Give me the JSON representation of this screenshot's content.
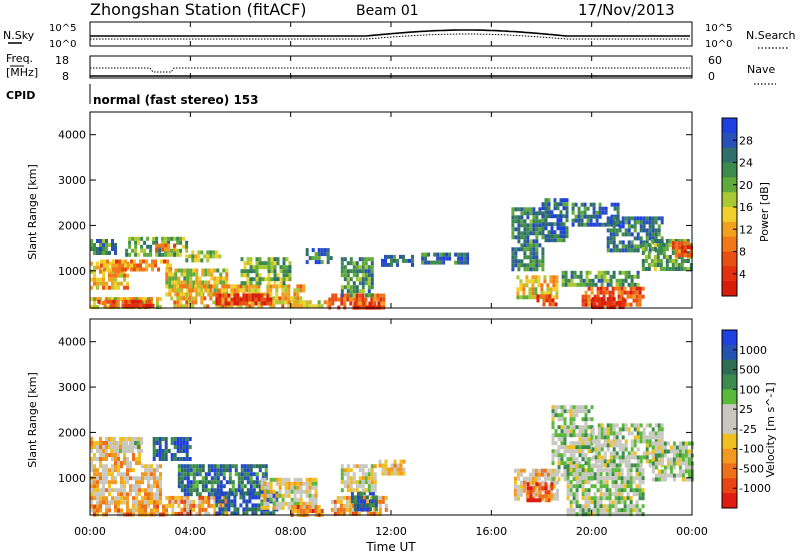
{
  "header": {
    "title": "Zhongshan Station (fitACF)",
    "beam": "Beam 01",
    "date": "17/Nov/2013"
  },
  "top_panels": {
    "nsky_label": "N.Sky",
    "nsearch_label": "N.Search",
    "count_ticks_left": [
      "10^5",
      "10^0"
    ],
    "count_ticks_right": [
      "10^5",
      "10^0"
    ],
    "freq_label_1": "Freq.",
    "freq_label_2": "[MHz]",
    "freq_ticks": [
      "18",
      "8"
    ],
    "nave_label": "Nave",
    "nave_ticks": [
      "60",
      "0"
    ],
    "cpid_label": "CPID",
    "cpid_text": "normal (fast stereo) 153"
  },
  "colorbars": {
    "power": {
      "label": "Power [dB]",
      "ticks": [
        "28",
        "24",
        "20",
        "16",
        "12",
        "8",
        "4"
      ],
      "colors": [
        "#1f3fe0",
        "#2852b8",
        "#2f6e6a",
        "#3d8a4e",
        "#5faa3a",
        "#a9c832",
        "#f0d02a",
        "#f2a020",
        "#f07818",
        "#e94f12",
        "#e23010",
        "#d81c0c"
      ]
    },
    "velocity": {
      "label": "Velocity [m s^-1]",
      "ticks": [
        "1000",
        "500",
        "100",
        "25",
        "-25",
        "-100",
        "-500",
        "-1000"
      ],
      "colors": [
        "#1f3fe0",
        "#2552b0",
        "#2d6e55",
        "#3d8a4e",
        "#5ab83a",
        "#c8c8c0",
        "#c8c8c0",
        "#f0c020",
        "#f29a20",
        "#ee7018",
        "#e84414",
        "#e01c10"
      ]
    }
  },
  "chart_data": [
    {
      "type": "heatmap",
      "name": "Power",
      "ylabel": "Slant Range [km]",
      "yticks": [
        "4000",
        "3000",
        "2000",
        "1000"
      ],
      "ylim": [
        180,
        4500
      ],
      "xlim_hours": [
        0,
        24
      ],
      "cells": [
        {
          "t0": 0.0,
          "t1": 2.8,
          "r0": 200,
          "r1": 420,
          "level": 0.55
        },
        {
          "t0": 0.3,
          "t1": 2.5,
          "r0": 230,
          "r1": 360,
          "level": 0.85
        },
        {
          "t0": 0.0,
          "t1": 1.5,
          "r0": 650,
          "r1": 1200,
          "level": 0.6
        },
        {
          "t0": 0.4,
          "t1": 3.2,
          "r0": 1000,
          "r1": 1250,
          "level": 0.7
        },
        {
          "t0": 0.0,
          "t1": 1.0,
          "r0": 1350,
          "r1": 1700,
          "level": 0.25
        },
        {
          "t0": 1.4,
          "t1": 3.8,
          "r0": 1350,
          "r1": 1750,
          "level": 0.35
        },
        {
          "t0": 2.6,
          "t1": 3.4,
          "r0": 1450,
          "r1": 1600,
          "level": 0.75
        },
        {
          "t0": 3.0,
          "t1": 5.5,
          "r0": 500,
          "r1": 1050,
          "level": 0.5
        },
        {
          "t0": 3.2,
          "t1": 8.5,
          "r0": 200,
          "r1": 700,
          "level": 0.6
        },
        {
          "t0": 5.0,
          "t1": 7.2,
          "r0": 250,
          "r1": 500,
          "level": 0.9
        },
        {
          "t0": 6.0,
          "t1": 8.0,
          "r0": 700,
          "r1": 1300,
          "level": 0.4
        },
        {
          "t0": 3.8,
          "t1": 5.2,
          "r0": 1250,
          "r1": 1450,
          "level": 0.45
        },
        {
          "t0": 8.0,
          "t1": 9.5,
          "r0": 200,
          "r1": 350,
          "level": 0.5
        },
        {
          "t0": 8.6,
          "t1": 9.6,
          "r0": 1200,
          "r1": 1500,
          "level": 0.2
        },
        {
          "t0": 9.5,
          "t1": 11.7,
          "r0": 200,
          "r1": 500,
          "level": 0.75
        },
        {
          "t0": 10.5,
          "t1": 11.5,
          "r0": 200,
          "r1": 320,
          "level": 0.95
        },
        {
          "t0": 10.0,
          "t1": 11.2,
          "r0": 500,
          "r1": 1300,
          "level": 0.3
        },
        {
          "t0": 11.6,
          "t1": 12.8,
          "r0": 1100,
          "r1": 1350,
          "level": 0.2
        },
        {
          "t0": 13.2,
          "t1": 15.0,
          "r0": 1200,
          "r1": 1400,
          "level": 0.2
        },
        {
          "t0": 16.8,
          "t1": 18.0,
          "r0": 1000,
          "r1": 2400,
          "level": 0.25
        },
        {
          "t0": 17.0,
          "t1": 18.6,
          "r0": 400,
          "r1": 900,
          "level": 0.55
        },
        {
          "t0": 17.8,
          "t1": 18.6,
          "r0": 250,
          "r1": 480,
          "level": 0.85
        },
        {
          "t0": 18.0,
          "t1": 19.0,
          "r0": 1700,
          "r1": 2600,
          "level": 0.2
        },
        {
          "t0": 18.8,
          "t1": 21.8,
          "r0": 700,
          "r1": 1000,
          "level": 0.3
        },
        {
          "t0": 19.6,
          "t1": 22.0,
          "r0": 250,
          "r1": 650,
          "level": 0.8
        },
        {
          "t0": 20.0,
          "t1": 21.2,
          "r0": 230,
          "r1": 420,
          "level": 0.95
        },
        {
          "t0": 19.2,
          "t1": 21.0,
          "r0": 2000,
          "r1": 2500,
          "level": 0.2
        },
        {
          "t0": 20.6,
          "t1": 22.8,
          "r0": 1450,
          "r1": 2200,
          "level": 0.2
        },
        {
          "t0": 22.0,
          "t1": 24.0,
          "r0": 1000,
          "r1": 1700,
          "level": 0.35
        },
        {
          "t0": 23.2,
          "t1": 24.0,
          "r0": 1300,
          "r1": 1650,
          "level": 0.8
        }
      ]
    },
    {
      "type": "heatmap",
      "name": "Velocity",
      "ylabel": "Slant Range [km]",
      "yticks": [
        "4000",
        "3000",
        "2000",
        "1000"
      ],
      "ylim": [
        180,
        4500
      ],
      "xlim_hours": [
        0,
        24
      ],
      "cells": [
        {
          "t0": 0.0,
          "t1": 3.0,
          "r0": 200,
          "r1": 500,
          "level": 0.3
        },
        {
          "t0": 0.0,
          "t1": 2.8,
          "r0": 500,
          "r1": 1300,
          "level": 0.4
        },
        {
          "t0": 0.0,
          "t1": 2.0,
          "r0": 1300,
          "r1": 1900,
          "level": 0.35
        },
        {
          "t0": 0.8,
          "t1": 2.0,
          "r0": 1550,
          "r1": 1900,
          "level": 0.5
        },
        {
          "t0": 2.5,
          "t1": 4.0,
          "r0": 1400,
          "r1": 1900,
          "level": 0.85
        },
        {
          "t0": 3.0,
          "t1": 5.5,
          "r0": 200,
          "r1": 600,
          "level": 0.3
        },
        {
          "t0": 3.5,
          "t1": 7.0,
          "r0": 600,
          "r1": 1300,
          "level": 0.8
        },
        {
          "t0": 5.0,
          "t1": 7.5,
          "r0": 200,
          "r1": 700,
          "level": 0.85
        },
        {
          "t0": 6.8,
          "t1": 9.0,
          "r0": 300,
          "r1": 1000,
          "level": 0.45
        },
        {
          "t0": 8.0,
          "t1": 9.2,
          "r0": 200,
          "r1": 400,
          "level": 0.25
        },
        {
          "t0": 9.6,
          "t1": 11.8,
          "r0": 200,
          "r1": 600,
          "level": 0.3
        },
        {
          "t0": 10.4,
          "t1": 11.4,
          "r0": 300,
          "r1": 700,
          "level": 0.85
        },
        {
          "t0": 10.0,
          "t1": 11.4,
          "r0": 700,
          "r1": 1300,
          "level": 0.45
        },
        {
          "t0": 11.5,
          "t1": 12.5,
          "r0": 1100,
          "r1": 1400,
          "level": 0.4
        },
        {
          "t0": 16.9,
          "t1": 18.6,
          "r0": 500,
          "r1": 1200,
          "level": 0.4
        },
        {
          "t0": 17.4,
          "t1": 18.4,
          "r0": 500,
          "r1": 900,
          "level": 0.15
        },
        {
          "t0": 18.4,
          "t1": 20.0,
          "r0": 1000,
          "r1": 2600,
          "level": 0.55
        },
        {
          "t0": 19.0,
          "t1": 22.0,
          "r0": 200,
          "r1": 1300,
          "level": 0.55
        },
        {
          "t0": 20.0,
          "t1": 22.8,
          "r0": 1300,
          "r1": 2200,
          "level": 0.55
        },
        {
          "t0": 22.4,
          "t1": 24.0,
          "r0": 1000,
          "r1": 1800,
          "level": 0.55
        }
      ]
    }
  ],
  "x_axis": {
    "ticks": [
      "00:00",
      "04:00",
      "08:00",
      "12:00",
      "16:00",
      "20:00",
      "00:00"
    ],
    "label": "Time UT"
  }
}
